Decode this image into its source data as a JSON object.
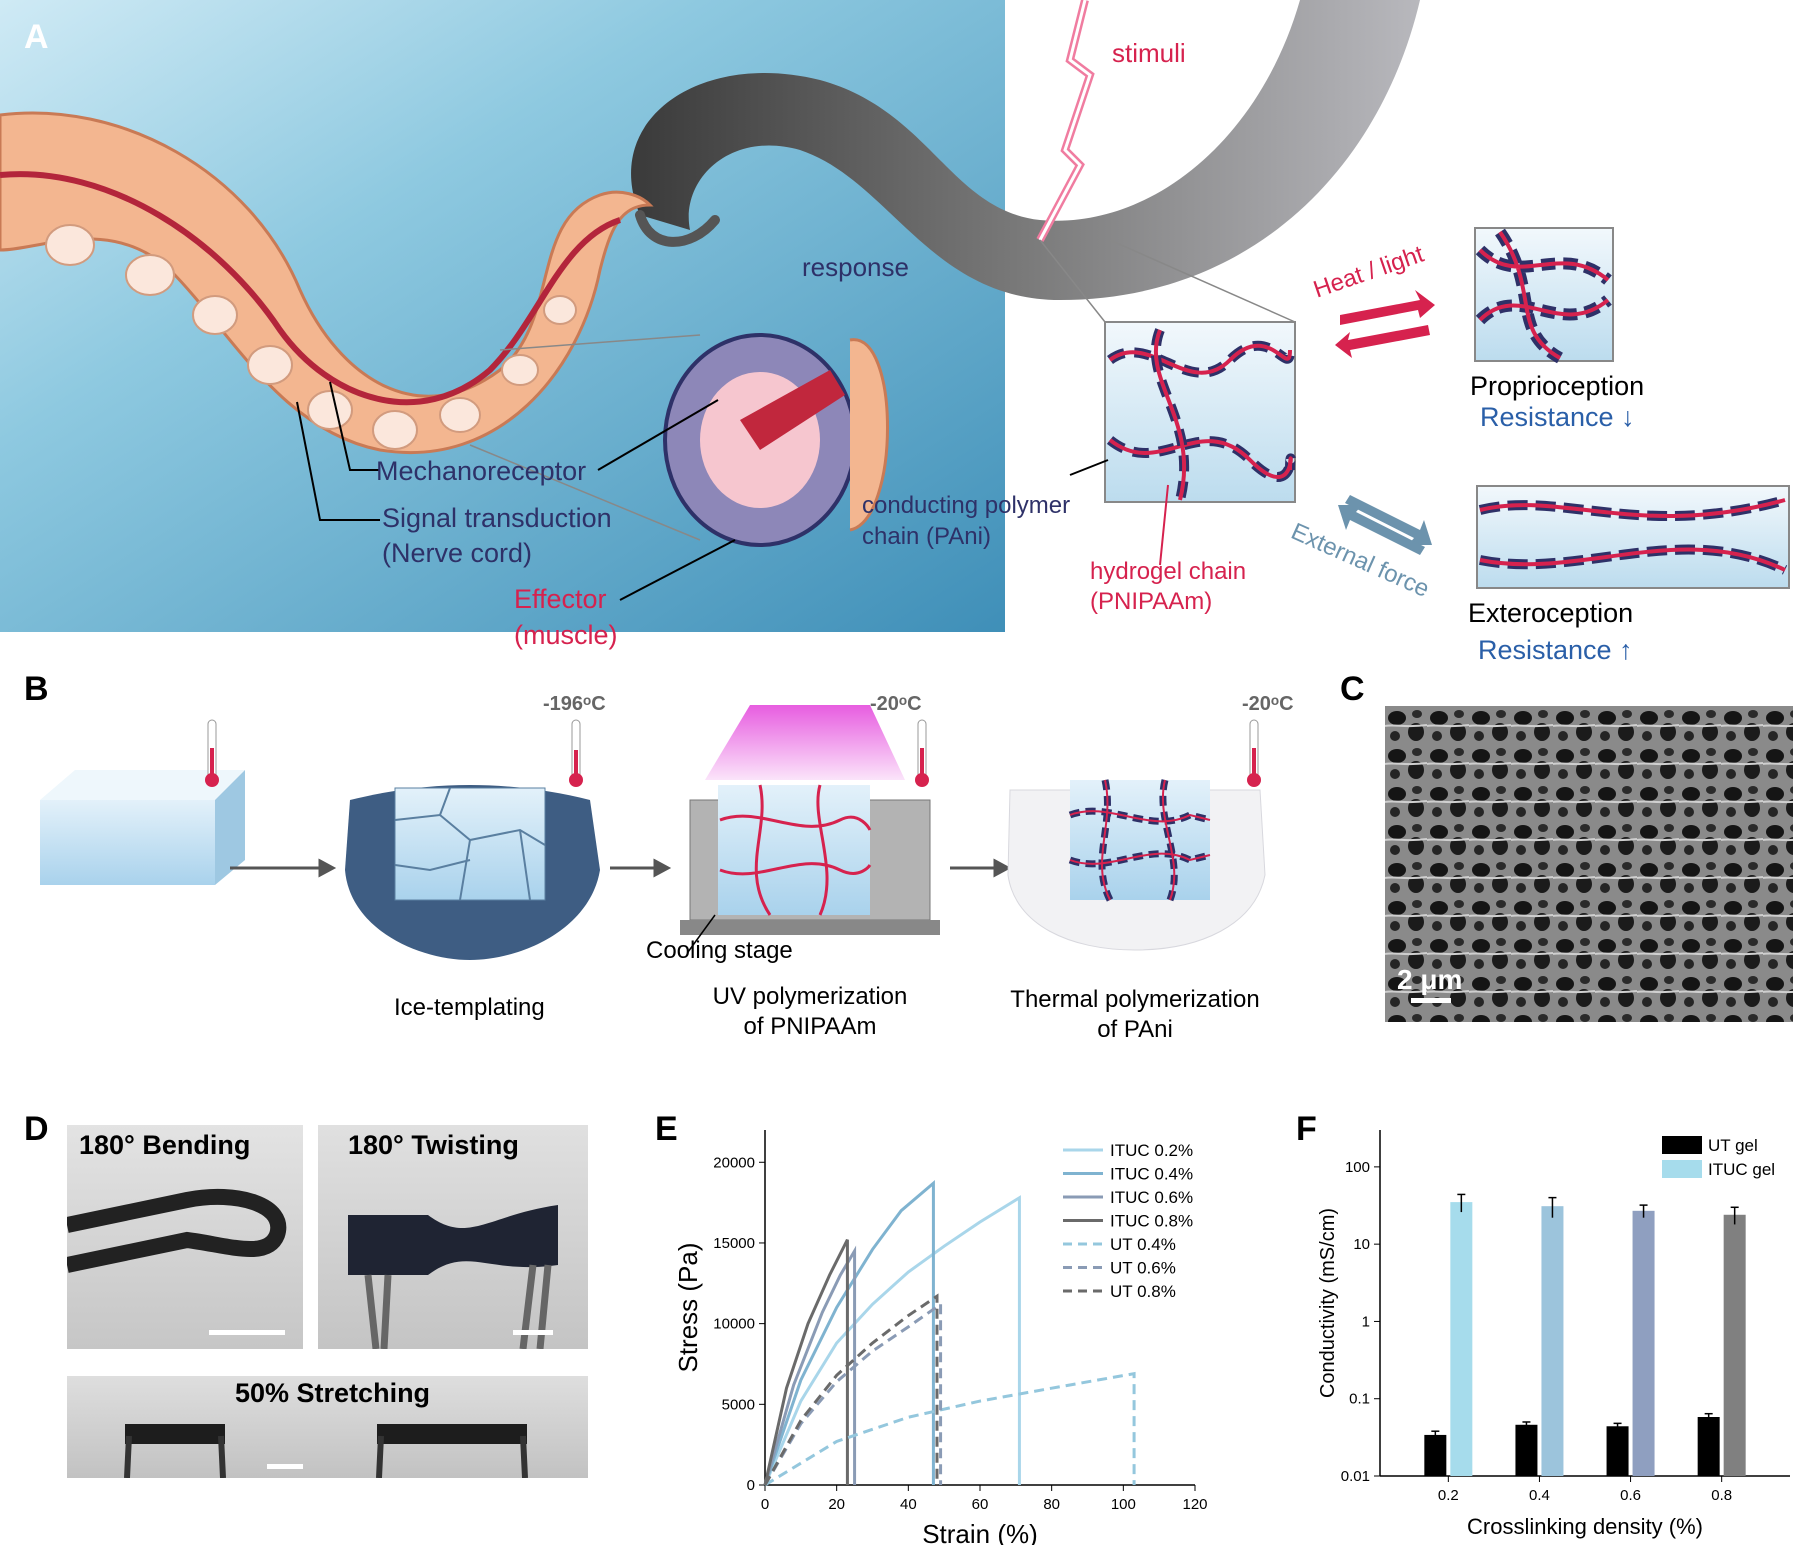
{
  "panels": {
    "a": "A",
    "b": "B",
    "c": "C",
    "d": "D",
    "e": "E",
    "f": "F"
  },
  "panel_a": {
    "stimuli": "stimuli",
    "response": "response",
    "heat_light": "Heat / light",
    "external_force": "External force",
    "proprioception": "Proprioception",
    "resistance_down": "Resistance ↓",
    "exteroception": "Exteroception",
    "resistance_up": "Resistance ↑",
    "mechanoreceptor": "Mechanoreceptor",
    "signal_transduction": "Signal transduction",
    "nerve_cord": "(Nerve cord)",
    "effector": "Effector",
    "muscle": "(muscle)",
    "conducting_polymer": "conducting polymer",
    "pani": "chain (PAni)",
    "hydrogel_chain": "hydrogel chain",
    "pnipaam": "(PNIPAAm)"
  },
  "panel_b": {
    "temp1": "-196ᵒC",
    "temp2": "-20ᵒC",
    "temp3": "-20ᵒC",
    "cooling_stage": "Cooling stage",
    "step1": "Ice-templating",
    "step2_line1": "UV polymerization",
    "step2_line2": "of PNIPAAm",
    "step3_line1": "Thermal polymerization",
    "step3_line2": "of PAni"
  },
  "panel_c": {
    "scale_bar": "2 μm"
  },
  "panel_d": {
    "bending": "180° Bending",
    "twisting": "180° Twisting",
    "stretching": "50% Stretching"
  },
  "colors": {
    "red": "#d6224e",
    "navy": "#2e3168",
    "blue_text": "#2a5fa8",
    "sky": "#7ec8e3"
  },
  "chart_data": [
    {
      "type": "line",
      "title": "",
      "xlabel": "Strain (%)",
      "ylabel": "Stress (Pa)",
      "xlim": [
        0,
        120
      ],
      "ylim": [
        0,
        22000
      ],
      "xticks": [
        0,
        20,
        40,
        60,
        80,
        100,
        120
      ],
      "yticks": [
        0,
        5000,
        10000,
        15000,
        20000
      ],
      "legend": "top-right",
      "series": [
        {
          "name": "ITUC 0.2%",
          "color": "#a9d6ea",
          "dash": false,
          "x": [
            0,
            10,
            20,
            30,
            40,
            50,
            60,
            71,
            71
          ],
          "y": [
            0,
            5200,
            8800,
            11200,
            13200,
            14800,
            16300,
            17800,
            0
          ]
        },
        {
          "name": "ITUC 0.4%",
          "color": "#7fb3d0",
          "dash": false,
          "x": [
            0,
            10,
            20,
            30,
            38,
            47,
            47
          ],
          "y": [
            0,
            6500,
            11000,
            14600,
            17000,
            18700,
            0
          ]
        },
        {
          "name": "ITUC 0.6%",
          "color": "#8a9bb5",
          "dash": false,
          "x": [
            0,
            8,
            16,
            21,
            25,
            25
          ],
          "y": [
            0,
            6200,
            10700,
            13000,
            14500,
            0
          ]
        },
        {
          "name": "ITUC 0.8%",
          "color": "#6a6a6a",
          "dash": false,
          "x": [
            0,
            6,
            12,
            18,
            23,
            23
          ],
          "y": [
            0,
            6000,
            10000,
            13000,
            15200,
            0
          ]
        },
        {
          "name": "UT 0.4%",
          "color": "#94c7dd",
          "dash": true,
          "x": [
            0,
            20,
            40,
            60,
            80,
            103,
            103
          ],
          "y": [
            0,
            2700,
            4200,
            5200,
            6000,
            6900,
            0
          ]
        },
        {
          "name": "UT 0.6%",
          "color": "#8a9bb5",
          "dash": true,
          "x": [
            0,
            10,
            20,
            30,
            40,
            49,
            49
          ],
          "y": [
            0,
            3800,
            6400,
            8300,
            9800,
            11200,
            0
          ]
        },
        {
          "name": "UT 0.8%",
          "color": "#6a6a6a",
          "dash": true,
          "x": [
            0,
            10,
            20,
            30,
            40,
            48,
            48
          ],
          "y": [
            0,
            4000,
            6800,
            8800,
            10500,
            11700,
            0
          ]
        }
      ]
    },
    {
      "type": "bar",
      "title": "",
      "xlabel": "Crosslinking density (%)",
      "ylabel": "Conductivity (mS/cm)",
      "yscale": "log",
      "ylim": [
        0.01,
        300
      ],
      "yticks": [
        0.01,
        0.1,
        1,
        10,
        100
      ],
      "ytick_labels": [
        "0.01",
        "0.1",
        "1",
        "10",
        "100"
      ],
      "categories": [
        "0.2",
        "0.4",
        "0.6",
        "0.8"
      ],
      "legend": "top-right",
      "series": [
        {
          "name": "UT gel",
          "color": "#000000",
          "values": [
            0.034,
            0.046,
            0.044,
            0.058
          ],
          "errors": [
            0.004,
            0.004,
            0.004,
            0.006
          ]
        },
        {
          "name": "ITUC gel",
          "colors": [
            "#a6dcec",
            "#9cc4dc",
            "#8f9fc0",
            "#808080"
          ],
          "values": [
            35,
            31,
            27,
            24
          ],
          "errors": [
            9,
            9,
            5,
            6
          ]
        }
      ]
    }
  ]
}
